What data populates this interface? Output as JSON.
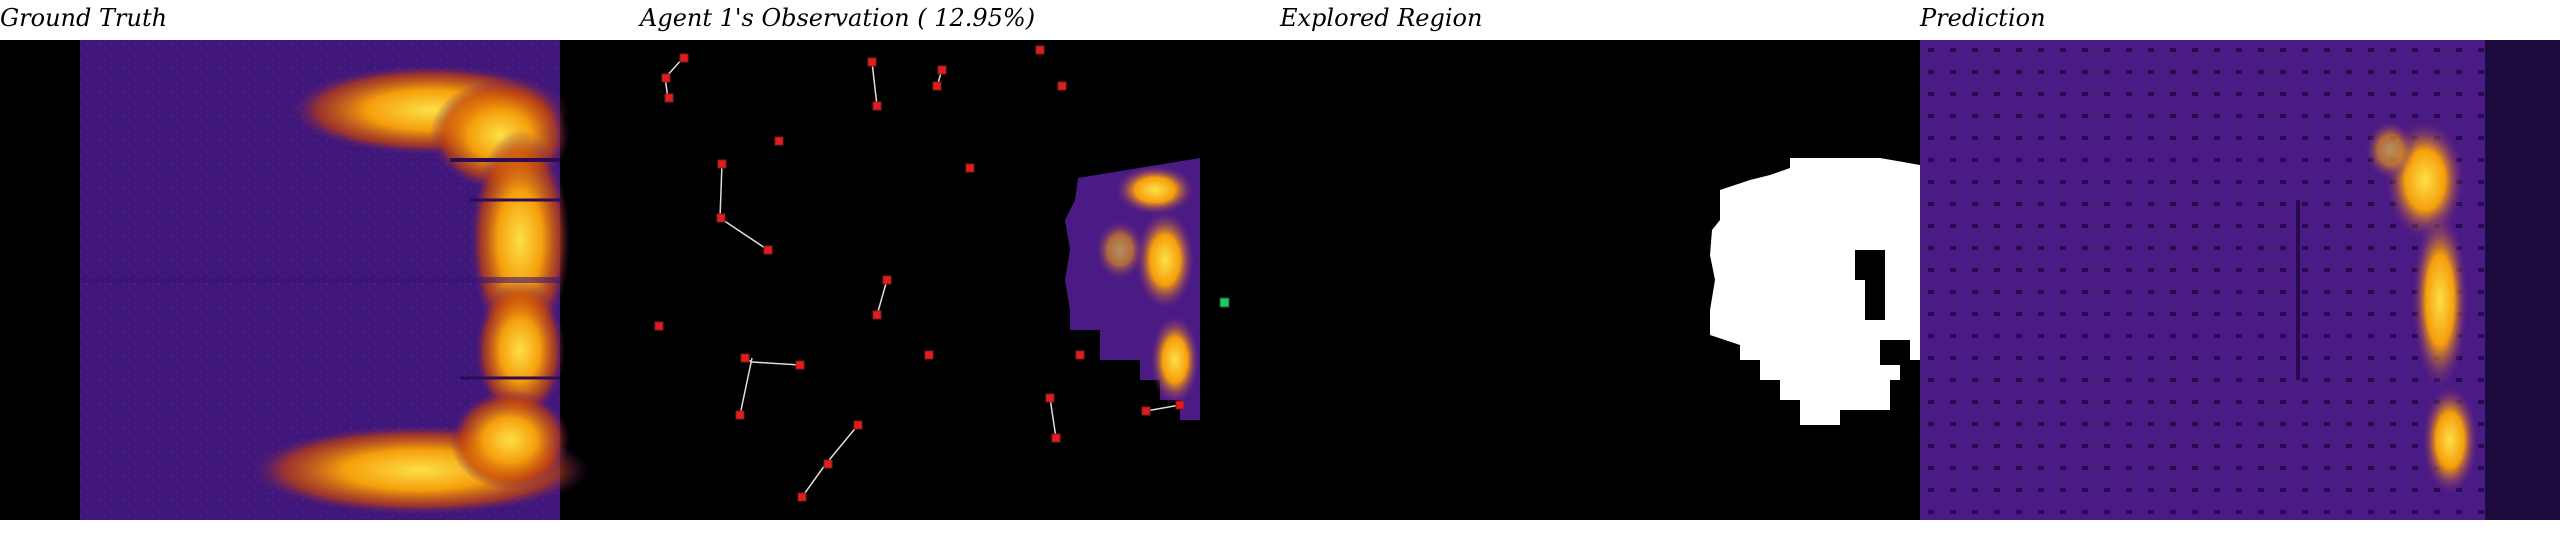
{
  "panels": {
    "ground_truth": {
      "title": "Ground Truth"
    },
    "observation": {
      "title": "Agent 1's Observation ( 12.95%)",
      "coverage_percent": 12.95
    },
    "explored": {
      "title": "Explored Region"
    },
    "prediction": {
      "title": "Prediction"
    }
  },
  "colors": {
    "background": "#000000",
    "map_low": "#3b0f70",
    "map_mid": "#8c2981",
    "map_high": "#fcd34d",
    "agent_marker": "#e11d1d",
    "agent_self_marker": "#22c55e",
    "explored_fill": "#ffffff",
    "trail": "#dddddd"
  }
}
